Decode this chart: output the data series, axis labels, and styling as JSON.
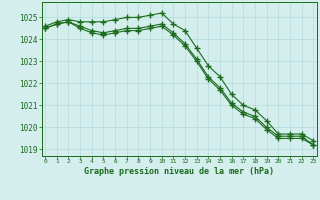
{
  "hours": [
    0,
    1,
    2,
    3,
    4,
    5,
    6,
    7,
    8,
    9,
    10,
    11,
    12,
    13,
    14,
    15,
    16,
    17,
    18,
    19,
    20,
    21,
    22,
    23
  ],
  "line1": [
    1024.6,
    1024.8,
    1024.9,
    1024.8,
    1024.8,
    1024.8,
    1024.9,
    1025.0,
    1025.0,
    1025.1,
    1025.2,
    1024.7,
    1024.4,
    1023.6,
    1022.8,
    1022.3,
    1021.5,
    1021.0,
    1020.8,
    1020.3,
    1019.7,
    1019.7,
    1019.7,
    1019.4
  ],
  "line2": [
    1024.5,
    1024.7,
    1024.8,
    1024.6,
    1024.4,
    1024.3,
    1024.4,
    1024.5,
    1024.5,
    1024.6,
    1024.7,
    1024.3,
    1023.8,
    1023.1,
    1022.3,
    1021.8,
    1021.1,
    1020.7,
    1020.5,
    1020.0,
    1019.6,
    1019.6,
    1019.6,
    1019.2
  ],
  "line3": [
    1024.5,
    1024.7,
    1024.8,
    1024.5,
    1024.3,
    1024.2,
    1024.3,
    1024.4,
    1024.4,
    1024.5,
    1024.6,
    1024.2,
    1023.7,
    1023.0,
    1022.2,
    1021.7,
    1021.0,
    1020.6,
    1020.4,
    1019.9,
    1019.5,
    1019.5,
    1019.5,
    1019.2
  ],
  "line_color": "#1a6b1a",
  "bg_color": "#d4eeee",
  "grid_color": "#b8dede",
  "ylim": [
    1018.7,
    1025.7
  ],
  "yticks": [
    1019,
    1020,
    1021,
    1022,
    1023,
    1024,
    1025
  ],
  "xlabel": "Graphe pression niveau de la mer (hPa)"
}
